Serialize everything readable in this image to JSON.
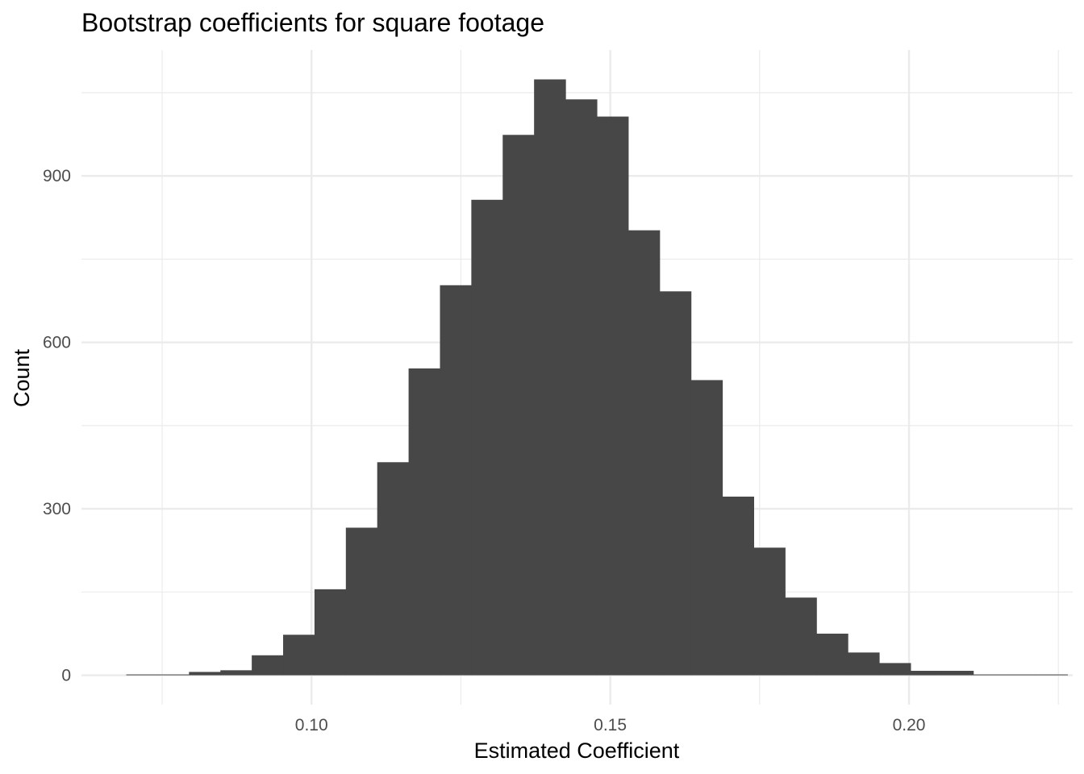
{
  "chart_data": {
    "type": "bar",
    "title": "Bootstrap coefficients for square footage",
    "xlabel": "Estimated Coefficient",
    "ylabel": "Count",
    "xlim": [
      0.0615,
      0.2274
    ],
    "ylim": [
      -53,
      1127
    ],
    "x_ticks": [
      0.1,
      0.15,
      0.2
    ],
    "x_tick_labels": [
      "0.10",
      "0.15",
      "0.20"
    ],
    "y_ticks": [
      0,
      300,
      600,
      900
    ],
    "y_tick_labels": [
      "0",
      "300",
      "600",
      "900"
    ],
    "grid": true,
    "bar_color": "#474747",
    "bin_width": 0.00525,
    "bins": [
      {
        "x0": 0.069,
        "count": 1
      },
      {
        "x0": 0.07425,
        "count": 1
      },
      {
        "x0": 0.0795,
        "count": 6
      },
      {
        "x0": 0.08475,
        "count": 9
      },
      {
        "x0": 0.09,
        "count": 36
      },
      {
        "x0": 0.09525,
        "count": 73
      },
      {
        "x0": 0.1005,
        "count": 155
      },
      {
        "x0": 0.10575,
        "count": 266
      },
      {
        "x0": 0.111,
        "count": 384
      },
      {
        "x0": 0.11625,
        "count": 553
      },
      {
        "x0": 0.1215,
        "count": 703
      },
      {
        "x0": 0.12675,
        "count": 857
      },
      {
        "x0": 0.132,
        "count": 974
      },
      {
        "x0": 0.13725,
        "count": 1074
      },
      {
        "x0": 0.1425,
        "count": 1038
      },
      {
        "x0": 0.14775,
        "count": 1007
      },
      {
        "x0": 0.153,
        "count": 802
      },
      {
        "x0": 0.15825,
        "count": 692
      },
      {
        "x0": 0.1635,
        "count": 532
      },
      {
        "x0": 0.16875,
        "count": 322
      },
      {
        "x0": 0.174,
        "count": 230
      },
      {
        "x0": 0.17925,
        "count": 140
      },
      {
        "x0": 0.1845,
        "count": 75
      },
      {
        "x0": 0.18975,
        "count": 41
      },
      {
        "x0": 0.195,
        "count": 22
      },
      {
        "x0": 0.20025,
        "count": 8
      },
      {
        "x0": 0.2055,
        "count": 8
      },
      {
        "x0": 0.21075,
        "count": 1
      },
      {
        "x0": 0.216,
        "count": 1
      },
      {
        "x0": 0.22125,
        "count": 1
      }
    ]
  }
}
